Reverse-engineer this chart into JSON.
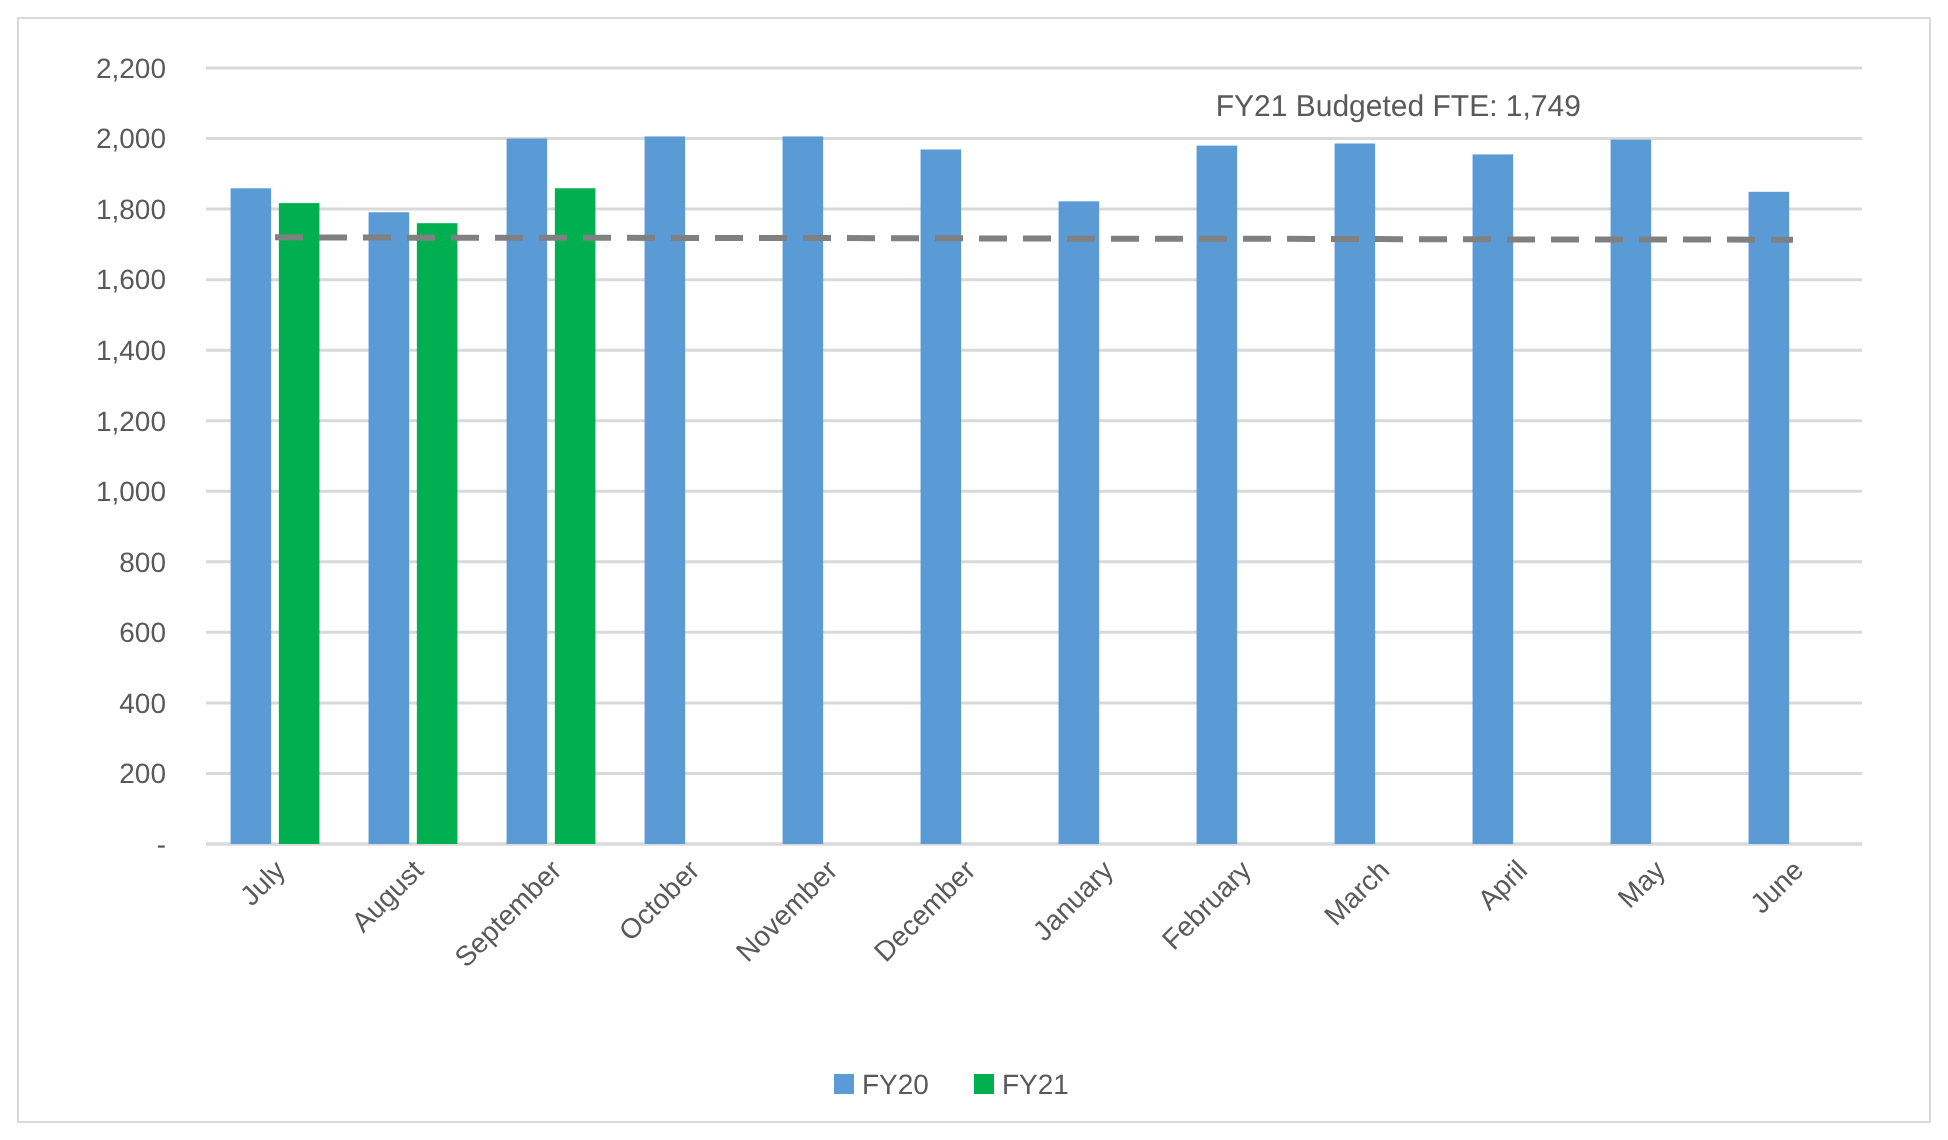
{
  "chart_data": {
    "type": "bar",
    "categories": [
      "July",
      "August",
      "September",
      "October",
      "November",
      "December",
      "January",
      "February",
      "March",
      "April",
      "May",
      "June"
    ],
    "series": [
      {
        "name": "FY20",
        "color": "#5b9bd5",
        "values": [
          1859,
          1791,
          2000,
          2006,
          2006,
          1969,
          1822,
          1980,
          1986,
          1955,
          1997,
          1849
        ]
      },
      {
        "name": "FY21",
        "color": "#00b050",
        "values": [
          1817,
          1760,
          1859,
          null,
          null,
          null,
          null,
          null,
          null,
          null,
          null,
          null
        ]
      },
      {
        "type": "line",
        "color": "#808080",
        "line_style": "dashed",
        "marker": "none",
        "values": [
          1720,
          1719,
          1719,
          1718,
          1718,
          1717,
          1716,
          1716,
          1715,
          1714,
          1714,
          1713
        ]
      }
    ],
    "ylim": [
      0,
      2200
    ],
    "yticks": [
      {
        "value": 0,
        "label": "-"
      },
      {
        "value": 200,
        "label": "200"
      },
      {
        "value": 400,
        "label": "400"
      },
      {
        "value": 600,
        "label": "600"
      },
      {
        "value": 800,
        "label": "800"
      },
      {
        "value": 1000,
        "label": "1,000"
      },
      {
        "value": 1200,
        "label": "1,200"
      },
      {
        "value": 1400,
        "label": "1,400"
      },
      {
        "value": 1600,
        "label": "1,600"
      },
      {
        "value": 1800,
        "label": "1,800"
      },
      {
        "value": 2000,
        "label": "2,000"
      },
      {
        "value": 2200,
        "label": "2,200"
      }
    ],
    "grid": "y",
    "legend": "bottom",
    "annotations": [
      "FY21 Budgeted FTE: 1,749"
    ]
  }
}
